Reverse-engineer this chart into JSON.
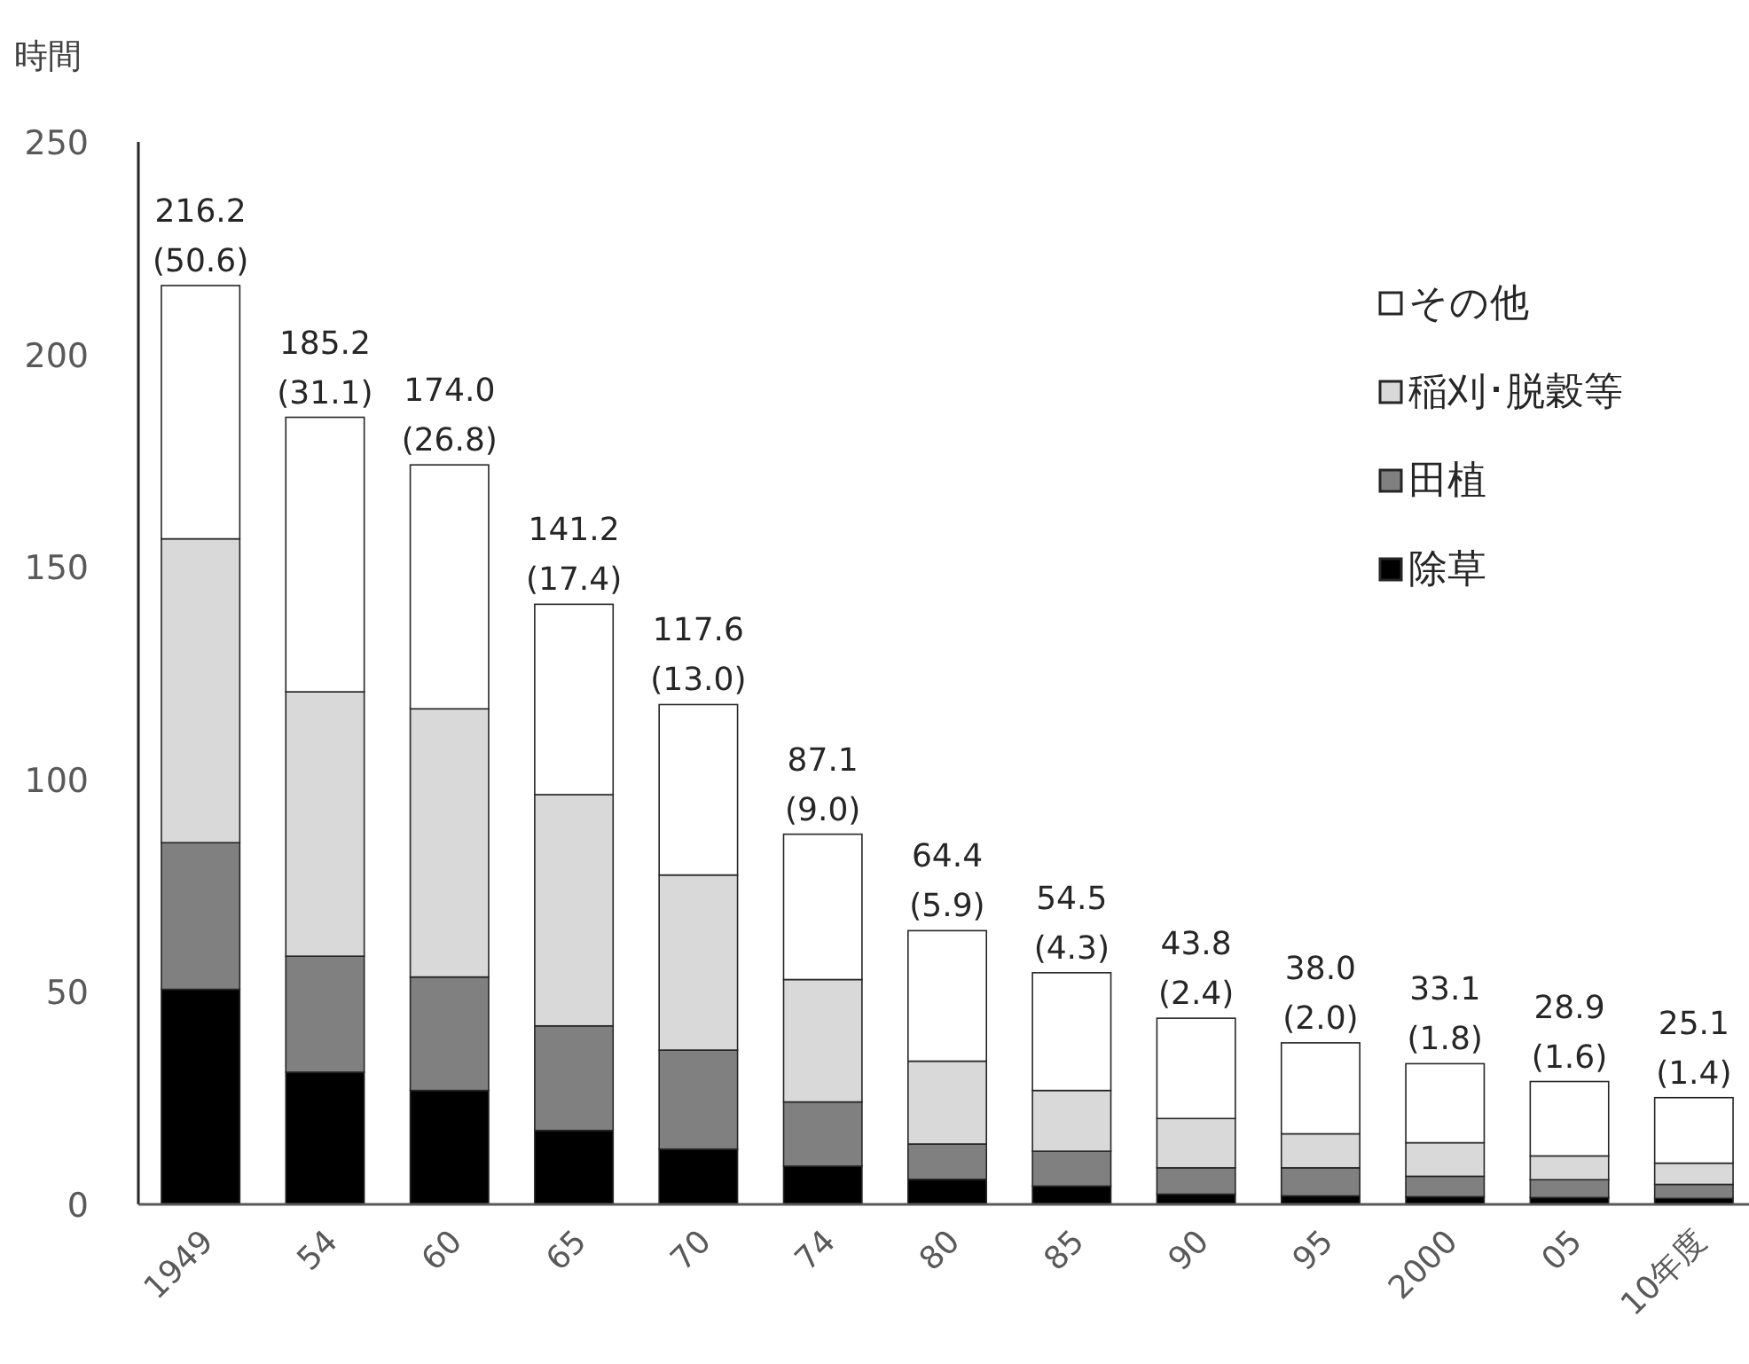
{
  "chart_data": {
    "type": "bar",
    "stacked": true,
    "ylabel": "時間",
    "categories": [
      "1949",
      "54",
      "60",
      "65",
      "70",
      "74",
      "80",
      "85",
      "90",
      "95",
      "2000",
      "05",
      "10年度"
    ],
    "series": [
      {
        "name": "除草",
        "color": "#000000",
        "values": [
          50.6,
          31.1,
          26.8,
          17.4,
          13.0,
          9.0,
          5.9,
          4.3,
          2.4,
          2.0,
          1.8,
          1.6,
          1.4
        ]
      },
      {
        "name": "田植",
        "color": "#808080",
        "values": [
          34.5,
          27.3,
          26.7,
          24.6,
          23.3,
          15.1,
          8.3,
          8.2,
          6.2,
          6.6,
          4.8,
          4.2,
          3.3
        ]
      },
      {
        "name": "稲刈･脱穀等",
        "color": "#d9d9d9",
        "values": [
          71.5,
          62.2,
          63.1,
          54.4,
          41.2,
          28.8,
          19.5,
          14.3,
          11.6,
          8.0,
          7.9,
          5.6,
          5.0
        ]
      },
      {
        "name": "その他",
        "color": "#ffffff",
        "values": [
          59.6,
          64.6,
          57.4,
          44.8,
          40.1,
          34.2,
          30.7,
          27.7,
          23.6,
          21.4,
          18.6,
          17.5,
          15.4
        ]
      }
    ],
    "totals": [
      "216.2\n(50.6)",
      "185.2\n(31.1)",
      "174.0\n(26.8)",
      "141.2\n(17.4)",
      "117.6\n(13.0)",
      "87.1\n(9.0)",
      "64.4\n(5.9)",
      "54.5\n(4.3)",
      "43.8\n(2.4)",
      "38.0\n(2.0)",
      "33.1\n(1.8)",
      "28.9\n(1.6)",
      "25.1\n(1.4)"
    ],
    "ylim": [
      0,
      250
    ],
    "yticks": [
      0,
      50,
      100,
      150,
      200,
      250
    ],
    "legend": "top right",
    "grid": false
  }
}
